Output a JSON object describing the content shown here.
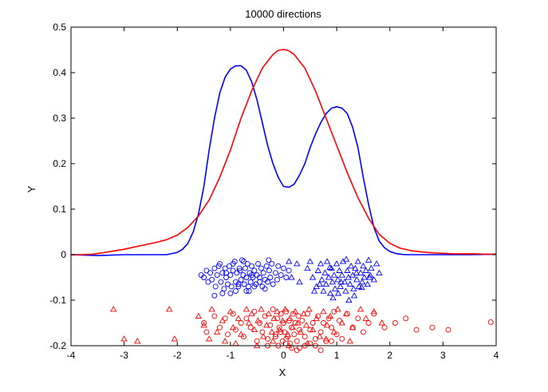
{
  "chart_data": {
    "type": "line",
    "title": "10000 directions",
    "xlabel": "X",
    "ylabel": "Y",
    "xlim": [
      -4,
      4
    ],
    "ylim": [
      -0.2,
      0.5
    ],
    "grid": false,
    "legend": "none",
    "xticks": [
      -4,
      -3,
      -2,
      -1,
      0,
      1,
      2,
      3,
      4
    ],
    "xtick_labels": [
      "-4",
      "-3",
      "-2",
      "-1",
      "0",
      "1",
      "2",
      "3",
      "4"
    ],
    "yticks": [
      -0.2,
      -0.1,
      0,
      0.1,
      0.2,
      0.3,
      0.4,
      0.5
    ],
    "ytick_labels": [
      "-0.2",
      "-0.1",
      "0",
      "0.1",
      "0.2",
      "0.3",
      "0.4",
      "0.5"
    ],
    "colors": {
      "blue": "#0000ff",
      "red": "#ff0000"
    },
    "series": [
      {
        "color": "#0000ff",
        "kind": "line",
        "x": [
          -4.0,
          -3.5,
          -3.0,
          -2.5,
          -2.2,
          -2.0,
          -1.9,
          -1.8,
          -1.7,
          -1.6,
          -1.5,
          -1.4,
          -1.3,
          -1.2,
          -1.1,
          -1.0,
          -0.9,
          -0.8,
          -0.7,
          -0.6,
          -0.5,
          -0.4,
          -0.3,
          -0.2,
          -0.1,
          0.0,
          0.1,
          0.2,
          0.3,
          0.4,
          0.5,
          0.6,
          0.7,
          0.8,
          0.9,
          1.0,
          1.1,
          1.2,
          1.3,
          1.4,
          1.5,
          1.6,
          1.7,
          1.8,
          1.9,
          2.0,
          2.1,
          2.2,
          2.3,
          2.5,
          3.0,
          3.5,
          4.0
        ],
        "y": [
          0.0,
          -0.002,
          0.0,
          0.0,
          0.0,
          0.005,
          0.012,
          0.025,
          0.05,
          0.09,
          0.15,
          0.23,
          0.3,
          0.355,
          0.39,
          0.408,
          0.415,
          0.415,
          0.405,
          0.38,
          0.34,
          0.29,
          0.24,
          0.2,
          0.17,
          0.15,
          0.148,
          0.155,
          0.175,
          0.2,
          0.235,
          0.265,
          0.29,
          0.31,
          0.322,
          0.325,
          0.322,
          0.31,
          0.28,
          0.235,
          0.17,
          0.11,
          0.06,
          0.03,
          0.015,
          0.007,
          0.003,
          0.001,
          0.0,
          0.0,
          0.0,
          0.0,
          0.001
        ]
      },
      {
        "color": "#ff0000",
        "kind": "line",
        "x": [
          -4.0,
          -3.8,
          -3.6,
          -3.4,
          -3.2,
          -3.0,
          -2.8,
          -2.6,
          -2.4,
          -2.2,
          -2.0,
          -1.8,
          -1.6,
          -1.4,
          -1.2,
          -1.0,
          -0.8,
          -0.6,
          -0.4,
          -0.2,
          -0.1,
          0.0,
          0.1,
          0.2,
          0.4,
          0.6,
          0.8,
          1.0,
          1.2,
          1.4,
          1.6,
          1.8,
          2.0,
          2.2,
          2.4,
          2.6,
          2.8,
          3.0,
          3.2,
          3.4,
          3.6,
          3.8,
          4.0
        ],
        "y": [
          0.0,
          0.0,
          0.001,
          0.004,
          0.008,
          0.012,
          0.017,
          0.022,
          0.027,
          0.033,
          0.043,
          0.06,
          0.085,
          0.12,
          0.17,
          0.23,
          0.3,
          0.36,
          0.41,
          0.44,
          0.449,
          0.451,
          0.448,
          0.44,
          0.41,
          0.36,
          0.3,
          0.24,
          0.18,
          0.125,
          0.08,
          0.045,
          0.025,
          0.014,
          0.009,
          0.006,
          0.004,
          0.003,
          0.002,
          0.002,
          0.002,
          0.001,
          0.001
        ]
      },
      {
        "color": "#0000ff",
        "kind": "scatter",
        "marker": "circle",
        "x": [
          -1.55,
          -1.5,
          -1.45,
          -1.42,
          -1.38,
          -1.35,
          -1.3,
          -1.28,
          -1.25,
          -1.2,
          -1.18,
          -1.15,
          -1.12,
          -1.1,
          -1.08,
          -1.05,
          -1.02,
          -1.0,
          -0.98,
          -0.95,
          -0.92,
          -0.9,
          -0.88,
          -0.85,
          -0.83,
          -0.8,
          -0.78,
          -0.76,
          -0.74,
          -0.72,
          -0.7,
          -0.68,
          -0.66,
          -0.64,
          -0.62,
          -0.6,
          -0.58,
          -0.55,
          -0.52,
          -0.5,
          -0.48,
          -0.45,
          -0.42,
          -0.4,
          -0.38,
          -0.35,
          -0.32,
          -0.3,
          -0.27,
          -0.25,
          -0.22,
          -0.2,
          -0.15,
          -0.12,
          -0.1,
          -0.05,
          0.0,
          0.05,
          0.1,
          -1.3,
          -1.0,
          -0.9,
          -0.75,
          -0.65,
          -0.55,
          -0.35,
          -0.28,
          -0.85,
          -1.15,
          -0.95,
          -0.7,
          -0.6,
          -0.45,
          -0.82,
          -1.22,
          -1.08
        ],
        "y": [
          -0.045,
          -0.05,
          -0.035,
          -0.06,
          -0.04,
          -0.055,
          -0.03,
          -0.07,
          -0.045,
          -0.02,
          -0.06,
          -0.04,
          -0.075,
          -0.03,
          -0.05,
          -0.065,
          -0.025,
          -0.045,
          -0.07,
          -0.035,
          -0.015,
          -0.06,
          -0.04,
          -0.07,
          -0.03,
          -0.055,
          -0.012,
          -0.045,
          -0.065,
          -0.03,
          -0.05,
          -0.02,
          -0.07,
          -0.04,
          -0.06,
          -0.025,
          -0.05,
          -0.035,
          -0.065,
          -0.045,
          -0.02,
          -0.05,
          -0.03,
          -0.07,
          -0.04,
          -0.055,
          -0.025,
          -0.06,
          -0.035,
          -0.05,
          -0.02,
          -0.065,
          -0.04,
          -0.055,
          -0.025,
          -0.045,
          -0.03,
          -0.05,
          -0.035,
          -0.09,
          -0.085,
          -0.08,
          -0.015,
          -0.08,
          -0.07,
          -0.075,
          -0.012,
          -0.065,
          -0.085,
          -0.02,
          -0.08,
          -0.045,
          -0.06,
          -0.035,
          -0.025,
          -0.04
        ]
      },
      {
        "color": "#0000ff",
        "kind": "scatter",
        "marker": "triangle",
        "x": [
          0.1,
          0.15,
          0.25,
          0.3,
          0.45,
          0.5,
          0.55,
          0.62,
          0.65,
          0.7,
          0.72,
          0.75,
          0.78,
          0.8,
          0.82,
          0.85,
          0.88,
          0.9,
          0.92,
          0.95,
          0.97,
          1.0,
          1.02,
          1.05,
          1.07,
          1.1,
          1.12,
          1.15,
          1.17,
          1.2,
          1.22,
          1.25,
          1.27,
          1.3,
          1.32,
          1.35,
          1.38,
          1.4,
          1.42,
          1.45,
          1.48,
          1.5,
          1.52,
          1.55,
          1.58,
          1.6,
          1.63,
          1.65,
          1.7,
          1.75,
          1.8,
          0.68,
          0.87,
          1.03,
          1.18,
          1.33,
          1.47,
          1.62,
          0.93,
          1.23,
          0.58,
          1.08,
          1.37
        ],
        "y": [
          -0.015,
          -0.05,
          -0.02,
          -0.06,
          -0.03,
          -0.015,
          -0.05,
          -0.07,
          -0.035,
          -0.02,
          -0.055,
          -0.08,
          -0.04,
          -0.065,
          -0.015,
          -0.05,
          -0.085,
          -0.03,
          -0.06,
          -0.045,
          -0.075,
          -0.02,
          -0.055,
          -0.035,
          -0.07,
          -0.045,
          -0.015,
          -0.06,
          -0.08,
          -0.035,
          -0.05,
          -0.065,
          -0.025,
          -0.045,
          -0.075,
          -0.03,
          -0.055,
          -0.015,
          -0.07,
          -0.04,
          -0.06,
          -0.025,
          -0.05,
          -0.035,
          -0.065,
          -0.012,
          -0.045,
          -0.03,
          -0.055,
          -0.02,
          -0.04,
          -0.065,
          -0.028,
          -0.085,
          -0.01,
          -0.09,
          -0.072,
          -0.05,
          -0.095,
          -0.1,
          -0.08,
          -0.06,
          -0.04
        ]
      },
      {
        "color": "#ff0000",
        "kind": "scatter",
        "marker": "circle",
        "x": [
          -1.5,
          -1.45,
          -1.3,
          -1.2,
          -1.1,
          -1.05,
          -0.95,
          -0.9,
          -0.8,
          -0.75,
          -0.7,
          -0.62,
          -0.55,
          -0.5,
          -0.45,
          -0.4,
          -0.35,
          -0.3,
          -0.25,
          -0.2,
          -0.15,
          -0.12,
          -0.1,
          -0.08,
          -0.05,
          -0.02,
          0.0,
          0.02,
          0.05,
          0.08,
          0.1,
          0.12,
          0.15,
          0.18,
          0.2,
          0.22,
          0.25,
          0.28,
          0.3,
          0.35,
          0.4,
          0.45,
          0.5,
          0.55,
          0.6,
          0.65,
          0.7,
          0.75,
          0.8,
          0.85,
          0.9,
          0.95,
          1.0,
          1.05,
          1.1,
          1.2,
          1.3,
          1.4,
          1.5,
          1.6,
          1.7,
          1.9,
          2.1,
          2.3,
          2.5,
          2.8,
          3.1,
          3.9,
          -0.05,
          0.05,
          0.15,
          0.25,
          0.4,
          0.6,
          -0.3,
          -0.15,
          0.3,
          0.5,
          0.7,
          0.9
        ],
        "y": [
          -0.15,
          -0.17,
          -0.135,
          -0.16,
          -0.14,
          -0.175,
          -0.13,
          -0.165,
          -0.15,
          -0.18,
          -0.14,
          -0.16,
          -0.125,
          -0.19,
          -0.15,
          -0.17,
          -0.135,
          -0.185,
          -0.155,
          -0.12,
          -0.175,
          -0.14,
          -0.2,
          -0.16,
          -0.13,
          -0.19,
          -0.15,
          -0.17,
          -0.125,
          -0.18,
          -0.145,
          -0.195,
          -0.16,
          -0.13,
          -0.175,
          -0.15,
          -0.19,
          -0.135,
          -0.165,
          -0.145,
          -0.18,
          -0.13,
          -0.165,
          -0.15,
          -0.185,
          -0.135,
          -0.17,
          -0.15,
          -0.19,
          -0.14,
          -0.16,
          -0.125,
          -0.175,
          -0.145,
          -0.185,
          -0.13,
          -0.16,
          -0.14,
          -0.17,
          -0.15,
          -0.13,
          -0.16,
          -0.15,
          -0.14,
          -0.165,
          -0.16,
          -0.165,
          -0.148,
          -0.17,
          -0.185,
          -0.205,
          -0.21,
          -0.2,
          -0.2,
          -0.2,
          -0.18,
          -0.205,
          -0.195,
          -0.21,
          -0.19
        ]
      },
      {
        "color": "#ff0000",
        "kind": "scatter",
        "marker": "triangle",
        "x": [
          -3.2,
          -3.0,
          -2.75,
          -2.15,
          -2.05,
          -1.6,
          -1.5,
          -1.35,
          -1.25,
          -1.15,
          -1.0,
          -0.95,
          -0.85,
          -0.8,
          -0.7,
          -0.65,
          -0.6,
          -0.55,
          -0.48,
          -0.42,
          -0.38,
          -0.32,
          -0.28,
          -0.22,
          -0.18,
          -0.12,
          -0.08,
          -0.02,
          0.03,
          0.08,
          0.12,
          0.17,
          0.22,
          0.27,
          0.32,
          0.38,
          0.43,
          0.48,
          0.55,
          0.62,
          0.68,
          0.75,
          0.82,
          0.88,
          0.95,
          1.02,
          1.1,
          1.18,
          1.3,
          1.45,
          1.55,
          1.7,
          1.85,
          -1.4,
          -1.1,
          -0.9,
          -0.5,
          -0.2,
          0.1,
          0.45,
          0.8,
          1.25
        ],
        "y": [
          -0.12,
          -0.185,
          -0.19,
          -0.12,
          -0.185,
          -0.135,
          -0.155,
          -0.12,
          -0.17,
          -0.145,
          -0.125,
          -0.16,
          -0.14,
          -0.175,
          -0.12,
          -0.15,
          -0.13,
          -0.165,
          -0.145,
          -0.12,
          -0.18,
          -0.155,
          -0.13,
          -0.17,
          -0.14,
          -0.125,
          -0.165,
          -0.145,
          -0.12,
          -0.175,
          -0.14,
          -0.16,
          -0.125,
          -0.15,
          -0.17,
          -0.13,
          -0.155,
          -0.12,
          -0.165,
          -0.14,
          -0.18,
          -0.125,
          -0.155,
          -0.135,
          -0.17,
          -0.12,
          -0.15,
          -0.13,
          -0.16,
          -0.12,
          -0.14,
          -0.125,
          -0.15,
          -0.185,
          -0.19,
          -0.195,
          -0.2,
          -0.19,
          -0.2,
          -0.195,
          -0.185,
          -0.19
        ]
      }
    ]
  }
}
